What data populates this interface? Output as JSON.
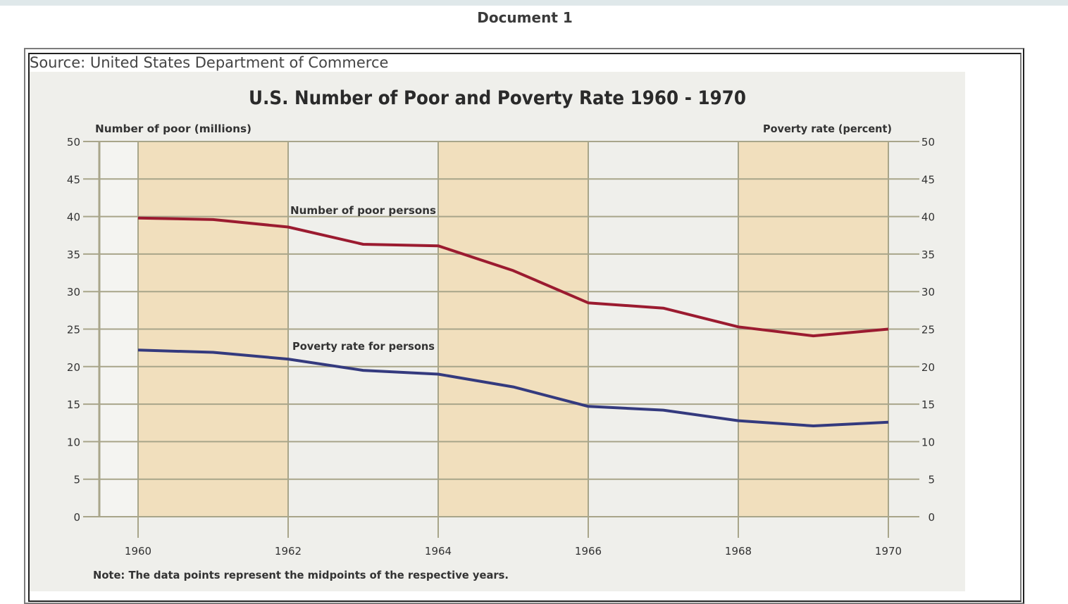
{
  "page": {
    "heading": "Document 1",
    "source": "Source: United States Department of Commerce"
  },
  "colors": {
    "poor_line": "#9b1b30",
    "rate_line": "#343a7e",
    "band": "#f1dfbd",
    "grid": "#a8a58a",
    "background": "#efefeb"
  },
  "chart_data": {
    "type": "line",
    "title": "U.S. Number of Poor and Poverty Rate 1960 - 1970",
    "ylabel_left": "Number of poor (millions)",
    "ylabel_right": "Poverty rate (percent)",
    "note": "Note: The data points represent the midpoints of the respective years.",
    "x": [
      1960,
      1961,
      1962,
      1963,
      1964,
      1965,
      1966,
      1967,
      1968,
      1969,
      1970
    ],
    "xlim": [
      1960,
      1970
    ],
    "ylim": [
      0,
      50
    ],
    "x_ticks": [
      "1960",
      "1962",
      "1964",
      "1966",
      "1968",
      "1970"
    ],
    "y_ticks": [
      "0",
      "5",
      "10",
      "15",
      "20",
      "25",
      "30",
      "35",
      "40",
      "45",
      "50"
    ],
    "shaded_bands": [
      [
        1960,
        1962
      ],
      [
        1964,
        1966
      ],
      [
        1968,
        1970
      ]
    ],
    "grid": true,
    "series": [
      {
        "name": "Number of poor persons",
        "axis": "left",
        "values": [
          39.8,
          39.6,
          38.6,
          36.3,
          36.1,
          32.8,
          28.5,
          27.8,
          25.3,
          24.1,
          25.0
        ]
      },
      {
        "name": "Poverty rate for persons",
        "axis": "right",
        "values": [
          22.2,
          21.9,
          21.0,
          19.5,
          19.0,
          17.3,
          14.7,
          14.2,
          12.8,
          12.1,
          12.6
        ]
      }
    ]
  }
}
